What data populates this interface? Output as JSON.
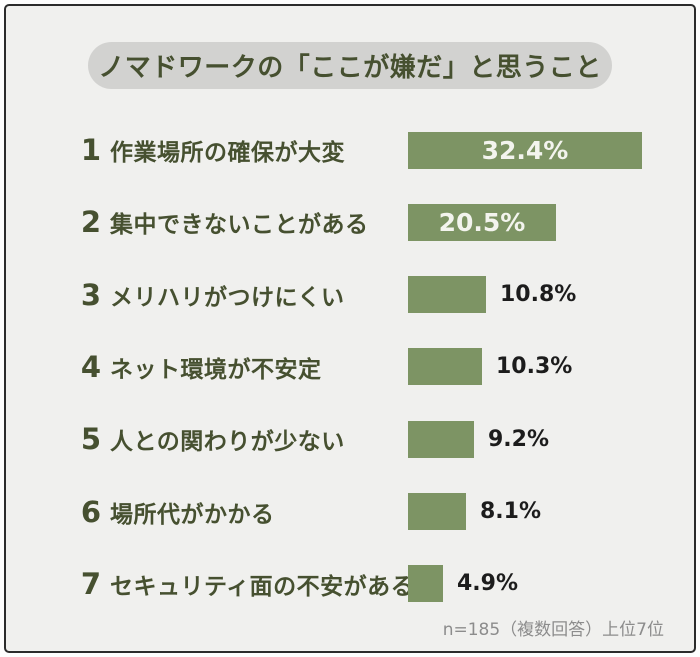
{
  "header": {
    "title": "ノマドワークの「ここが嫌だ」と思うこと"
  },
  "footer": {
    "note": "n=185（複数回答）上位7位"
  },
  "colors": {
    "background": "#f0f0ee",
    "frame_border": "#2b2b2b",
    "bar": "#7d9464",
    "title_pill": "#d2d2d0",
    "text_green": "#465030",
    "value_inside_text": "#f3f4ee",
    "value_outside_text": "#1c1c1c",
    "footer_text": "#8c8c8c"
  },
  "chart_data": {
    "type": "bar",
    "orientation": "horizontal",
    "title": "ノマドワークの「ここが嫌だ」と思うこと",
    "note": "n=185（複数回答）上位7位",
    "unit": "%",
    "xlim": [
      0,
      35
    ],
    "grid": false,
    "legend": false,
    "categories": [
      "作業場所の確保が大変",
      "集中できないことがある",
      "メリハリがつけにくい",
      "ネット環境が不安定",
      "人との関わりが少ない",
      "場所代がかかる",
      "セキュリティ面の不安がある"
    ],
    "values": [
      32.4,
      20.5,
      10.8,
      10.3,
      9.2,
      8.1,
      4.9
    ],
    "items": [
      {
        "rank": "1",
        "label": "作業場所の確保が大変",
        "value": 32.4,
        "value_label": "32.4%",
        "value_label_position": "inside"
      },
      {
        "rank": "2",
        "label": "集中できないことがある",
        "value": 20.5,
        "value_label": "20.5%",
        "value_label_position": "inside"
      },
      {
        "rank": "3",
        "label": "メリハリがつけにくい",
        "value": 10.8,
        "value_label": "10.8%",
        "value_label_position": "outside"
      },
      {
        "rank": "4",
        "label": "ネット環境が不安定",
        "value": 10.3,
        "value_label": "10.3%",
        "value_label_position": "outside"
      },
      {
        "rank": "5",
        "label": "人との関わりが少ない",
        "value": 9.2,
        "value_label": "9.2%",
        "value_label_position": "outside"
      },
      {
        "rank": "6",
        "label": "場所代がかかる",
        "value": 8.1,
        "value_label": "8.1%",
        "value_label_position": "outside"
      },
      {
        "rank": "7",
        "label": "セキュリティ面の不安がある",
        "value": 4.9,
        "value_label": "4.9%",
        "value_label_position": "outside"
      }
    ]
  }
}
